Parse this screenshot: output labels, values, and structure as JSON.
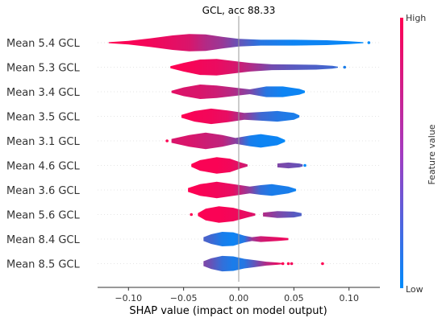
{
  "chart_data": {
    "type": "violin",
    "title": "GCL, acc 88.33",
    "xlabel": "SHAP value (impact on model output)",
    "xlim": [
      -0.128,
      0.128
    ],
    "xticks": [
      -0.1,
      -0.05,
      0.0,
      0.05,
      0.1
    ],
    "xtick_labels": [
      "−0.10",
      "−0.05",
      "0.00",
      "0.05",
      "0.10"
    ],
    "colorbar": {
      "label": "Feature value",
      "high": "High",
      "low": "Low",
      "color_high": "#ff0052",
      "color_low": "#008bfb"
    },
    "features": [
      {
        "name": "Mean 5.4 GCL",
        "segments": [
          {
            "x": [
              -0.118,
              -0.1,
              -0.08,
              -0.06,
              -0.045,
              -0.03,
              -0.015,
              0.0,
              0.02,
              0.05,
              0.08,
              0.1,
              0.113
            ],
            "w": [
              0.05,
              0.18,
              0.45,
              0.75,
              0.9,
              0.85,
              0.6,
              0.4,
              0.3,
              0.3,
              0.25,
              0.15,
              0.05
            ],
            "c": [
              1.0,
              0.98,
              0.95,
              0.9,
              0.85,
              0.7,
              0.6,
              0.4,
              0.15,
              0.05,
              0.05,
              0.02,
              0.0
            ]
          }
        ],
        "dots": [
          {
            "x": 0.118,
            "c": 0.0
          }
        ]
      },
      {
        "name": "Mean 5.3 GCL",
        "segments": [
          {
            "x": [
              -0.062,
              -0.05,
              -0.035,
              -0.02,
              -0.005,
              0.01,
              0.03,
              0.05,
              0.07,
              0.085,
              0.09
            ],
            "w": [
              0.1,
              0.45,
              0.8,
              0.85,
              0.65,
              0.45,
              0.3,
              0.28,
              0.25,
              0.15,
              0.05
            ],
            "c": [
              1.0,
              0.98,
              0.95,
              0.92,
              0.85,
              0.7,
              0.45,
              0.35,
              0.3,
              0.25,
              0.2
            ]
          }
        ],
        "dots": [
          {
            "x": 0.096,
            "c": 0.1
          }
        ]
      },
      {
        "name": "Mean 3.4 GCL",
        "segments": [
          {
            "x": [
              -0.061,
              -0.05,
              -0.035,
              -0.02,
              -0.005,
              0.01,
              0.025,
              0.04,
              0.055,
              0.06
            ],
            "w": [
              0.1,
              0.45,
              0.75,
              0.65,
              0.45,
              0.25,
              0.55,
              0.55,
              0.3,
              0.1
            ],
            "c": [
              0.9,
              0.85,
              0.85,
              0.8,
              0.7,
              0.5,
              0.15,
              0.05,
              0.05,
              0.0
            ]
          }
        ],
        "dots": []
      },
      {
        "name": "Mean 3.5 GCL",
        "segments": [
          {
            "x": [
              -0.052,
              -0.04,
              -0.025,
              -0.01,
              0.005,
              0.02,
              0.035,
              0.05,
              0.055
            ],
            "w": [
              0.15,
              0.55,
              0.8,
              0.6,
              0.35,
              0.45,
              0.55,
              0.35,
              0.1
            ],
            "c": [
              1.0,
              0.97,
              0.95,
              0.9,
              0.6,
              0.25,
              0.15,
              0.1,
              0.1
            ]
          }
        ],
        "dots": []
      },
      {
        "name": "Mean 3.1 GCL",
        "segments": [
          {
            "x": [
              -0.061,
              -0.045,
              -0.03,
              -0.015,
              -0.003,
              0.01,
              0.02,
              0.035,
              0.042
            ],
            "w": [
              0.2,
              0.6,
              0.85,
              0.6,
              0.3,
              0.55,
              0.7,
              0.45,
              0.1
            ],
            "c": [
              0.85,
              0.85,
              0.8,
              0.75,
              0.55,
              0.1,
              0.05,
              0.05,
              0.0
            ]
          }
        ],
        "dots": [
          {
            "x": -0.065,
            "c": 1.0
          }
        ]
      },
      {
        "name": "Mean 4.6 GCL",
        "segments": [
          {
            "x": [
              -0.043,
              -0.035,
              -0.02,
              -0.008,
              0.002,
              0.008
            ],
            "w": [
              0.15,
              0.55,
              0.85,
              0.7,
              0.3,
              0.1
            ],
            "c": [
              1.0,
              0.98,
              0.98,
              0.95,
              0.85,
              0.8
            ]
          },
          {
            "x": [
              0.035,
              0.045,
              0.055,
              0.058
            ],
            "w": [
              0.2,
              0.3,
              0.2,
              0.1
            ],
            "c": [
              0.5,
              0.45,
              0.4,
              0.35
            ]
          }
        ],
        "dots": [
          {
            "x": 0.06,
            "c": 0.0
          }
        ]
      },
      {
        "name": "Mean 3.6 GCL",
        "segments": [
          {
            "x": [
              -0.046,
              -0.035,
              -0.02,
              -0.005,
              0.01,
              0.02,
              0.03,
              0.045,
              0.052
            ],
            "w": [
              0.2,
              0.6,
              0.85,
              0.6,
              0.35,
              0.5,
              0.6,
              0.35,
              0.1
            ],
            "c": [
              1.0,
              0.98,
              0.95,
              0.9,
              0.55,
              0.2,
              0.1,
              0.1,
              0.05
            ]
          }
        ],
        "dots": []
      },
      {
        "name": "Mean 5.6 GCL",
        "segments": [
          {
            "x": [
              -0.037,
              -0.03,
              -0.018,
              -0.005,
              0.008,
              0.015
            ],
            "w": [
              0.15,
              0.6,
              0.85,
              0.7,
              0.3,
              0.1
            ],
            "c": [
              1.0,
              0.98,
              0.98,
              0.95,
              0.9,
              0.85
            ]
          },
          {
            "x": [
              0.022,
              0.035,
              0.05,
              0.057
            ],
            "w": [
              0.2,
              0.35,
              0.3,
              0.15
            ],
            "c": [
              0.7,
              0.5,
              0.35,
              0.3
            ]
          }
        ],
        "dots": [
          {
            "x": -0.043,
            "c": 1.0
          }
        ]
      },
      {
        "name": "Mean 8.4 GCL",
        "segments": [
          {
            "x": [
              -0.032,
              -0.025,
              -0.015,
              -0.005,
              0.005,
              0.012,
              0.02,
              0.035,
              0.045
            ],
            "w": [
              0.2,
              0.5,
              0.75,
              0.7,
              0.35,
              0.2,
              0.3,
              0.2,
              0.1
            ],
            "c": [
              0.3,
              0.25,
              0.1,
              0.05,
              0.15,
              0.6,
              0.8,
              0.9,
              0.95
            ]
          }
        ],
        "dots": []
      },
      {
        "name": "Mean 8.5 GCL",
        "segments": [
          {
            "x": [
              -0.032,
              -0.025,
              -0.015,
              -0.005,
              0.005,
              0.015,
              0.025,
              0.035,
              0.04
            ],
            "w": [
              0.25,
              0.55,
              0.8,
              0.75,
              0.5,
              0.35,
              0.2,
              0.12,
              0.05
            ],
            "c": [
              0.5,
              0.4,
              0.2,
              0.1,
              0.15,
              0.4,
              0.7,
              0.9,
              0.95
            ]
          }
        ],
        "dots": [
          {
            "x": 0.04,
            "c": 1.0
          },
          {
            "x": 0.045,
            "c": 1.0
          },
          {
            "x": 0.048,
            "c": 0.95
          },
          {
            "x": 0.076,
            "c": 1.0
          }
        ]
      }
    ]
  }
}
